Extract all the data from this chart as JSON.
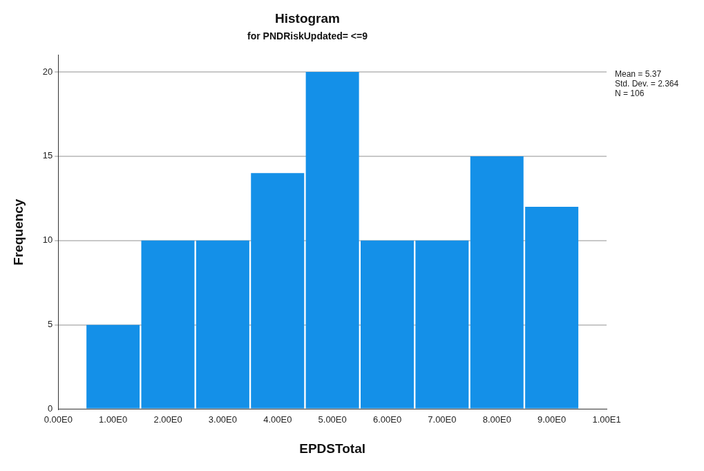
{
  "chart_data": {
    "type": "histogram",
    "title": "Histogram",
    "subtitle": "for PNDRiskUpdated= <=9",
    "xlabel": "EPDSTotal",
    "ylabel": "Frequency",
    "bins": [
      0.5,
      1.5,
      2.5,
      3.5,
      4.5,
      5.5,
      6.5,
      7.5,
      8.5,
      9.5
    ],
    "values": [
      5,
      10,
      10,
      14,
      20,
      10,
      10,
      15,
      12
    ],
    "color": "#1490e8",
    "xlim": [
      0,
      10
    ],
    "xticks": [
      {
        "value": 0,
        "label": "0.00E0"
      },
      {
        "value": 1,
        "label": "1.00E0"
      },
      {
        "value": 2,
        "label": "2.00E0"
      },
      {
        "value": 3,
        "label": "3.00E0"
      },
      {
        "value": 4,
        "label": "4.00E0"
      },
      {
        "value": 5,
        "label": "5.00E0"
      },
      {
        "value": 6,
        "label": "6.00E0"
      },
      {
        "value": 7,
        "label": "7.00E0"
      },
      {
        "value": 8,
        "label": "8.00E0"
      },
      {
        "value": 9,
        "label": "9.00E0"
      },
      {
        "value": 10,
        "label": "1.00E1"
      }
    ],
    "ylim": [
      0,
      21
    ],
    "yticks": [
      0,
      5,
      10,
      15,
      20
    ],
    "grid": "y",
    "annotations": [
      "Mean = 5.37",
      "Std. Dev. = 2.364",
      "N = 106"
    ]
  }
}
